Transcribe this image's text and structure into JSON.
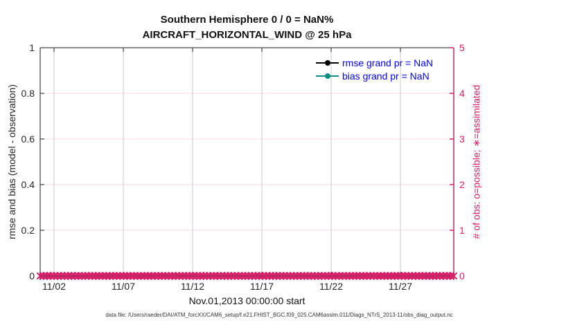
{
  "title": {
    "line1": "Southern Hemisphere 0 / 0 = NaN%",
    "line2": "AIRCRAFT_HORIZONTAL_WIND @ 25 hPa"
  },
  "legend": {
    "text_color": "#0000FF",
    "items": [
      {
        "label": "rmse grand pr = NaN",
        "color": "#000000"
      },
      {
        "label": "bias grand pr = NaN",
        "color": "#0E8F85"
      }
    ]
  },
  "footer": {
    "text": "data file: /Users/raeder/DAI/ATM_forcXX/CAM6_setup/f.e21.FHIST_BGC.f09_025.CAM6assim.011/Diags_NTrS_2013-11/obs_diag_output.nc"
  },
  "colors": {
    "accent_pink": "#D81E68",
    "grid_gray": "#C9C9C9",
    "grid_pink": "#F5D9E6",
    "axis_black": "#1A1A1A",
    "bias_teal": "#0E8F85",
    "legend_blue": "#0000FF"
  },
  "chart_data": {
    "type": "line",
    "title": "Southern Hemisphere 0 / 0 = NaN%",
    "subtitle": "AIRCRAFT_HORIZONTAL_WIND @ 25 hPa",
    "xlabel": "Nov.01,2013 00:00:00 start",
    "ylabel_left": "rmse and bias (model - observation)",
    "ylabel_right": "# of obs: o=possible; ∗=assimilated",
    "x_tick_labels": [
      "11/02",
      "11/07",
      "11/12",
      "11/17",
      "11/22",
      "11/27"
    ],
    "x_tick_days": [
      1,
      6,
      11,
      16,
      21,
      26
    ],
    "x_range_days": [
      0,
      29.85
    ],
    "left_ticks": [
      0,
      0.2,
      0.4,
      0.6,
      0.8,
      1
    ],
    "left_tick_labels": [
      "0",
      "0.2",
      "0.4",
      "0.6",
      "0.8",
      "1"
    ],
    "left_ylim": [
      0,
      1
    ],
    "right_ticks": [
      0,
      1,
      2,
      3,
      4,
      5
    ],
    "right_tick_labels": [
      "0",
      "1",
      "2",
      "3",
      "4",
      "5"
    ],
    "right_ylim": [
      0,
      5
    ],
    "grid": true,
    "legend_position": "top-right-inside",
    "series": [
      {
        "name": "rmse grand pr = NaN",
        "axis": "left",
        "color": "#000000",
        "marker": "circle",
        "values": []
      },
      {
        "name": "bias grand pr = NaN",
        "axis": "left",
        "color": "#0E8F85",
        "marker": "circle",
        "values": []
      },
      {
        "name": "obs possible (o) / assimilated (∗)",
        "axis": "right",
        "color": "#D81E68",
        "marker": "asterisk",
        "interval_hours": 6,
        "num_points": 120,
        "constant_value": 0
      }
    ]
  }
}
